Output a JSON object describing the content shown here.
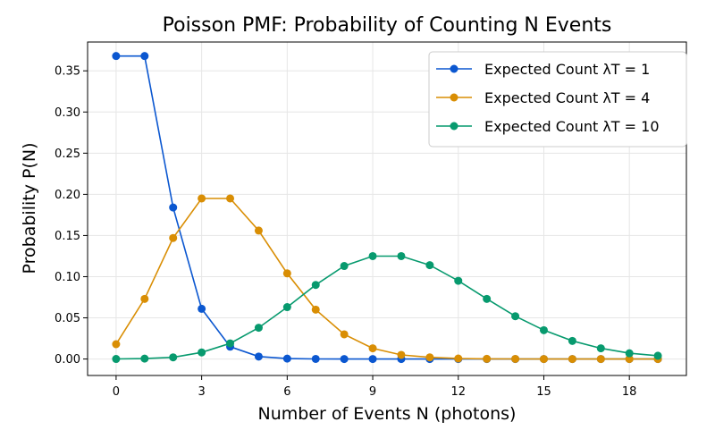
{
  "chart_data": {
    "type": "line",
    "title": "Poisson PMF: Probability of Counting N Events",
    "xlabel": "Number of Events N (photons)",
    "ylabel": "Probability P(N)",
    "xlim": [
      -1,
      20
    ],
    "ylim": [
      -0.02,
      0.385
    ],
    "grid": true,
    "legend_position": "top-right",
    "x_ticks": [
      0,
      3,
      6,
      9,
      12,
      15,
      18
    ],
    "x_tick_labels": [
      "0",
      "3",
      "6",
      "9",
      "12",
      "15",
      "18"
    ],
    "y_ticks": [
      0.0,
      0.05,
      0.1,
      0.15,
      0.2,
      0.25,
      0.3,
      0.35
    ],
    "y_tick_labels": [
      "0.00",
      "0.05",
      "0.10",
      "0.15",
      "0.20",
      "0.25",
      "0.30",
      "0.35"
    ],
    "x": [
      0,
      1,
      2,
      3,
      4,
      5,
      6,
      7,
      8,
      9,
      10,
      11,
      12,
      13,
      14,
      15,
      16,
      17,
      18,
      19
    ],
    "series": [
      {
        "name": "Expected Count λT = 1",
        "color": "#0b57d0",
        "values": [
          0.368,
          0.368,
          0.184,
          0.061,
          0.015,
          0.003,
          0.0005,
          0.0001,
          0.0,
          0.0,
          0.0,
          0.0,
          0.0,
          0.0,
          0.0,
          0.0,
          0.0,
          0.0,
          0.0,
          0.0
        ]
      },
      {
        "name": "Expected Count λT = 4",
        "color": "#d98e04",
        "values": [
          0.018,
          0.073,
          0.147,
          0.195,
          0.195,
          0.156,
          0.104,
          0.06,
          0.03,
          0.013,
          0.005,
          0.002,
          0.0006,
          0.0002,
          0.0001,
          0.0,
          0.0,
          0.0,
          0.0,
          0.0
        ]
      },
      {
        "name": "Expected Count λT = 10",
        "color": "#079a6e",
        "values": [
          5e-05,
          0.0005,
          0.002,
          0.008,
          0.019,
          0.038,
          0.063,
          0.09,
          0.113,
          0.125,
          0.125,
          0.114,
          0.095,
          0.073,
          0.052,
          0.035,
          0.022,
          0.013,
          0.007,
          0.004
        ]
      }
    ]
  }
}
